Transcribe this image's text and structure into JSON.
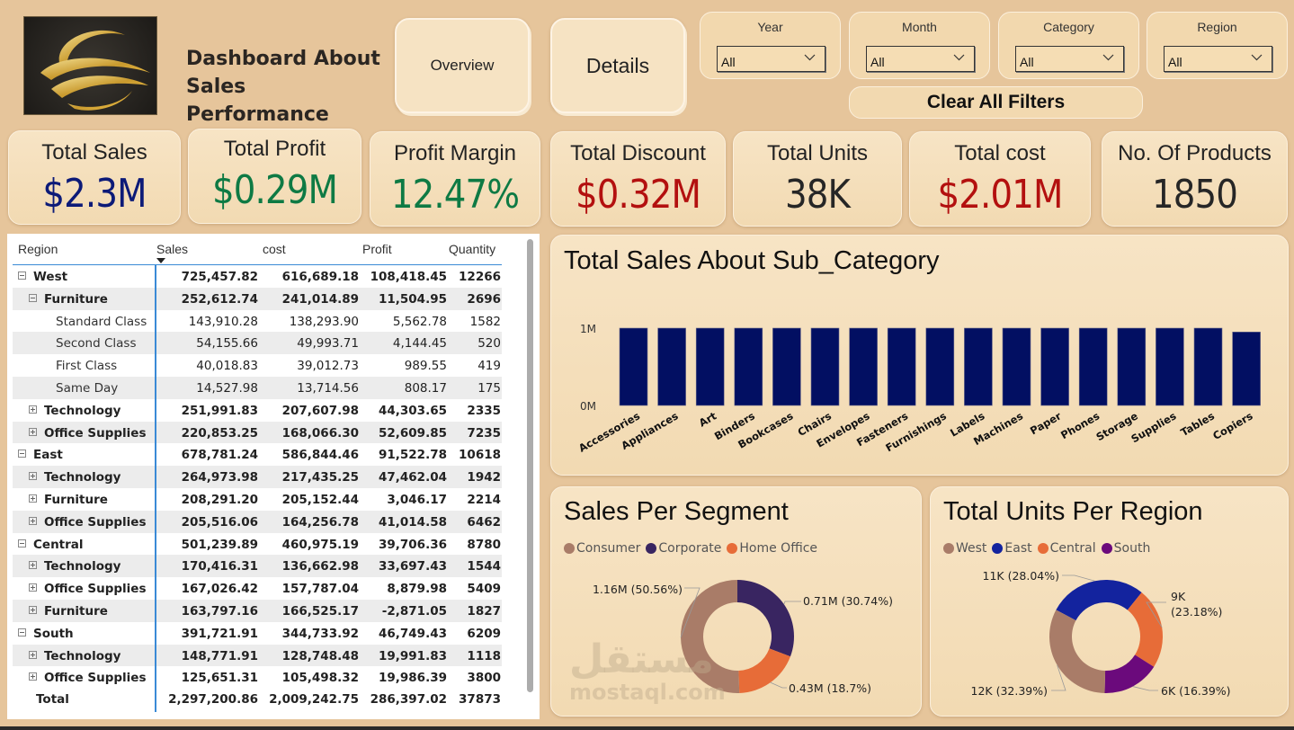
{
  "header": {
    "title_line1": "Dashboard About",
    "title_line2": "Sales Performance",
    "nav": [
      {
        "label": "Overview"
      },
      {
        "label": "Details"
      }
    ]
  },
  "filters": [
    {
      "label": "Year",
      "value": "All"
    },
    {
      "label": "Month",
      "value": "All"
    },
    {
      "label": "Category",
      "value": "All"
    },
    {
      "label": "Region",
      "value": "All"
    }
  ],
  "clear_filters_label": "Clear All Filters",
  "kpis": [
    {
      "label": "Total Sales",
      "value": "$2.3M",
      "color": "#0c1a78"
    },
    {
      "label": "Total Profit",
      "value": "$0.29M",
      "color": "#0e7a44"
    },
    {
      "label": "Profit Margin",
      "value": "12.47%",
      "color": "#0e7a44"
    },
    {
      "label": "Total Discount",
      "value": "$0.32M",
      "color": "#b3100f"
    },
    {
      "label": "Total Units",
      "value": "38K",
      "color": "#262626"
    },
    {
      "label": "Total cost",
      "value": "$2.01M",
      "color": "#b3100f"
    },
    {
      "label": "No. Of Products",
      "value": "1850",
      "color": "#262626"
    }
  ],
  "matrix": {
    "columns": [
      "Region",
      "Sales",
      "cost",
      "Profit",
      "Quantity"
    ],
    "sorted_column": "Sales",
    "rows": [
      {
        "level": 0,
        "expander": "minus",
        "label": "West",
        "sales": "725,457.82",
        "cost": "616,689.18",
        "profit": "108,418.45",
        "qty": "12266",
        "bold": true
      },
      {
        "level": 1,
        "expander": "minus",
        "label": "Furniture",
        "sales": "252,612.74",
        "cost": "241,014.89",
        "profit": "11,504.95",
        "qty": "2696",
        "bold": true
      },
      {
        "level": 2,
        "expander": "",
        "label": "Standard Class",
        "sales": "143,910.28",
        "cost": "138,293.90",
        "profit": "5,562.78",
        "qty": "1582",
        "bold": false
      },
      {
        "level": 2,
        "expander": "",
        "label": "Second Class",
        "sales": "54,155.66",
        "cost": "49,993.71",
        "profit": "4,144.45",
        "qty": "520",
        "bold": false
      },
      {
        "level": 2,
        "expander": "",
        "label": "First Class",
        "sales": "40,018.83",
        "cost": "39,012.73",
        "profit": "989.55",
        "qty": "419",
        "bold": false
      },
      {
        "level": 2,
        "expander": "",
        "label": "Same Day",
        "sales": "14,527.98",
        "cost": "13,714.56",
        "profit": "808.17",
        "qty": "175",
        "bold": false
      },
      {
        "level": 1,
        "expander": "plus",
        "label": "Technology",
        "sales": "251,991.83",
        "cost": "207,607.98",
        "profit": "44,303.65",
        "qty": "2335",
        "bold": true
      },
      {
        "level": 1,
        "expander": "plus",
        "label": "Office Supplies",
        "sales": "220,853.25",
        "cost": "168,066.30",
        "profit": "52,609.85",
        "qty": "7235",
        "bold": true
      },
      {
        "level": 0,
        "expander": "minus",
        "label": "East",
        "sales": "678,781.24",
        "cost": "586,844.46",
        "profit": "91,522.78",
        "qty": "10618",
        "bold": true
      },
      {
        "level": 1,
        "expander": "plus",
        "label": "Technology",
        "sales": "264,973.98",
        "cost": "217,435.25",
        "profit": "47,462.04",
        "qty": "1942",
        "bold": true
      },
      {
        "level": 1,
        "expander": "plus",
        "label": "Furniture",
        "sales": "208,291.20",
        "cost": "205,152.44",
        "profit": "3,046.17",
        "qty": "2214",
        "bold": true
      },
      {
        "level": 1,
        "expander": "plus",
        "label": "Office Supplies",
        "sales": "205,516.06",
        "cost": "164,256.78",
        "profit": "41,014.58",
        "qty": "6462",
        "bold": true
      },
      {
        "level": 0,
        "expander": "minus",
        "label": "Central",
        "sales": "501,239.89",
        "cost": "460,975.19",
        "profit": "39,706.36",
        "qty": "8780",
        "bold": true
      },
      {
        "level": 1,
        "expander": "plus",
        "label": "Technology",
        "sales": "170,416.31",
        "cost": "136,662.98",
        "profit": "33,697.43",
        "qty": "1544",
        "bold": true
      },
      {
        "level": 1,
        "expander": "plus",
        "label": "Office Supplies",
        "sales": "167,026.42",
        "cost": "157,787.04",
        "profit": "8,879.98",
        "qty": "5409",
        "bold": true
      },
      {
        "level": 1,
        "expander": "plus",
        "label": "Furniture",
        "sales": "163,797.16",
        "cost": "166,525.17",
        "profit": "-2,871.05",
        "qty": "1827",
        "bold": true
      },
      {
        "level": 0,
        "expander": "minus",
        "label": "South",
        "sales": "391,721.91",
        "cost": "344,733.92",
        "profit": "46,749.43",
        "qty": "6209",
        "bold": true
      },
      {
        "level": 1,
        "expander": "plus",
        "label": "Technology",
        "sales": "148,771.91",
        "cost": "128,748.48",
        "profit": "19,991.83",
        "qty": "1118",
        "bold": true
      },
      {
        "level": 1,
        "expander": "plus",
        "label": "Office Supplies",
        "sales": "125,651.31",
        "cost": "105,498.32",
        "profit": "19,986.39",
        "qty": "3800",
        "bold": true
      }
    ],
    "total": {
      "label": "Total",
      "sales": "2,297,200.86",
      "cost": "2,009,242.75",
      "profit": "286,397.02",
      "qty": "37873"
    }
  },
  "chart_data": [
    {
      "type": "bar",
      "title": "Total Sales About Sub_Category",
      "categories": [
        "Accessories",
        "Appliances",
        "Art",
        "Binders",
        "Bookcases",
        "Chairs",
        "Envelopes",
        "Fasteners",
        "Furnishings",
        "Labels",
        "Machines",
        "Paper",
        "Phones",
        "Storage",
        "Supplies",
        "Tables",
        "Copiers"
      ],
      "values": [
        1.0,
        1.0,
        1.0,
        1.0,
        1.0,
        1.0,
        1.0,
        1.0,
        1.0,
        1.0,
        1.0,
        1.0,
        1.0,
        1.0,
        1.0,
        1.0,
        0.95
      ],
      "units": "M",
      "ylim": [
        0,
        1
      ],
      "yticks": [
        "0M",
        "1M"
      ],
      "xlabel": "",
      "ylabel": "",
      "bar_color": "#020f62",
      "grid": false
    },
    {
      "type": "pie",
      "variant": "donut",
      "title": "Sales Per Segment",
      "legend_position": "top-left",
      "slices": [
        {
          "name": "Consumer",
          "value": 1.16,
          "percent": 50.56,
          "label": "1.16M (50.56%)",
          "color": "#a97c68"
        },
        {
          "name": "Corporate",
          "value": 0.71,
          "percent": 30.74,
          "label": "0.71M (30.74%)",
          "color": "#392561"
        },
        {
          "name": "Home Office",
          "value": 0.43,
          "percent": 18.7,
          "label": "0.43M (18.7%)",
          "color": "#e76c38"
        }
      ]
    },
    {
      "type": "pie",
      "variant": "donut",
      "title": "Total Units Per Region",
      "legend_position": "top-left",
      "slices": [
        {
          "name": "West",
          "value": 12,
          "percent": 32.39,
          "label": "12K (32.39%)",
          "color": "#a97c68"
        },
        {
          "name": "East",
          "value": 11,
          "percent": 28.04,
          "label": "11K (28.04%)",
          "color": "#13239e"
        },
        {
          "name": "Central",
          "value": 9,
          "percent": 23.18,
          "label": "9K (23.18%)",
          "color": "#e76c38"
        },
        {
          "name": "South",
          "value": 6,
          "percent": 16.39,
          "label": "6K (16.39%)",
          "color": "#6b0a7c"
        }
      ]
    }
  ],
  "watermark": {
    "arabic": "مستقل",
    "latin": "mostaql.com"
  }
}
